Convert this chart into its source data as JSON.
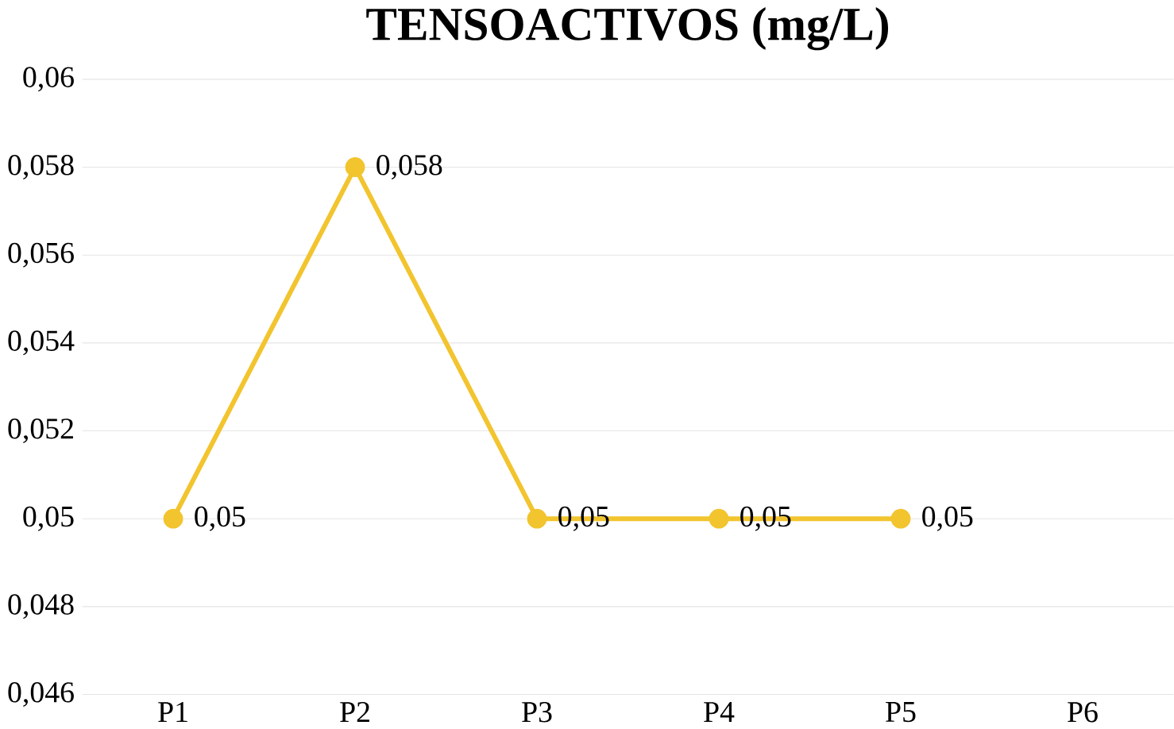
{
  "chart_data": {
    "type": "line",
    "title": "TENSOACTIVOS (mg/L)",
    "categories": [
      "P1",
      "P2",
      "P3",
      "P4",
      "P5",
      "P6"
    ],
    "series": [
      {
        "color": "#f2c42e",
        "values": [
          0.05,
          0.058,
          0.05,
          0.05,
          0.05,
          null
        ],
        "value_labels": [
          "0,05",
          "0,058",
          "0,05",
          "0,05",
          "0,05",
          null
        ]
      }
    ],
    "ylim": [
      0.046,
      0.06
    ],
    "yticks": [
      {
        "value": 0.046,
        "label": "0,046"
      },
      {
        "value": 0.048,
        "label": "0,048"
      },
      {
        "value": 0.05,
        "label": "0,05"
      },
      {
        "value": 0.052,
        "label": "0,052"
      },
      {
        "value": 0.054,
        "label": "0,054"
      },
      {
        "value": 0.056,
        "label": "0,056"
      },
      {
        "value": 0.058,
        "label": "0,058"
      },
      {
        "value": 0.06,
        "label": "0,06"
      }
    ],
    "grid": "y",
    "marker": "circle",
    "line_style": "solid"
  }
}
